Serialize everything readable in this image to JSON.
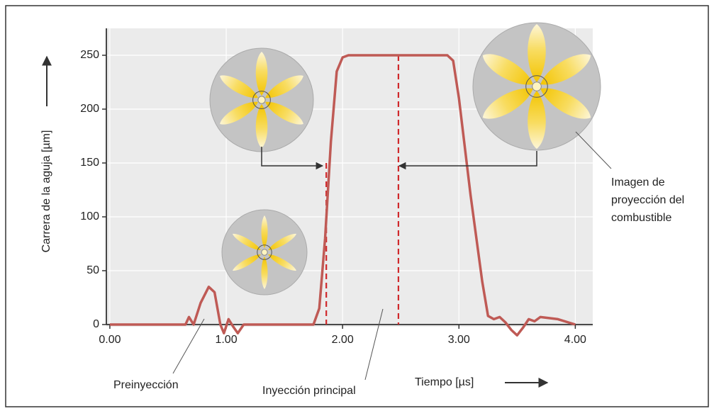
{
  "chart_data": {
    "type": "line",
    "x_label": "Tiempo [µs]",
    "y_label": "Carrera de la aguja [µm]",
    "xlim": [
      -0.03,
      4.15
    ],
    "ylim": [
      0,
      275
    ],
    "xticks": [
      {
        "value": 0,
        "label": "0.00"
      },
      {
        "value": 1,
        "label": "1.00"
      },
      {
        "value": 2,
        "label": "2.00"
      },
      {
        "value": 3,
        "label": "3.00"
      },
      {
        "value": 4,
        "label": "4.00"
      }
    ],
    "yticks": [
      0,
      50,
      100,
      150,
      200,
      250
    ],
    "grid": true,
    "series": [
      {
        "color": "#bf5a55",
        "x": [
          0,
          0.65,
          0.68,
          0.72,
          0.78,
          0.85,
          0.9,
          0.95,
          0.98,
          1.02,
          1.06,
          1.1,
          1.15,
          1.75,
          1.8,
          1.85,
          1.9,
          1.95,
          2.0,
          2.05,
          2.9,
          2.95,
          3.0,
          3.1,
          3.2,
          3.25,
          3.3,
          3.35,
          3.4,
          3.45,
          3.5,
          3.55,
          3.6,
          3.65,
          3.7,
          3.85,
          4.0
        ],
        "values": [
          0,
          0,
          7,
          0,
          20,
          35,
          30,
          0,
          -8,
          5,
          -2,
          -8,
          0,
          0,
          15,
          80,
          170,
          235,
          248,
          250,
          250,
          245,
          210,
          120,
          40,
          8,
          5,
          7,
          2,
          -5,
          -10,
          -3,
          5,
          3,
          7,
          5,
          0
        ]
      }
    ],
    "reference_lines": [
      {
        "x": 1.86,
        "y": 150
      },
      {
        "x": 2.48,
        "y": 250
      }
    ],
    "annotations": [
      "Preinyección",
      "Inyección principal",
      "Imagen de",
      "proyección del",
      "combustible"
    ]
  }
}
